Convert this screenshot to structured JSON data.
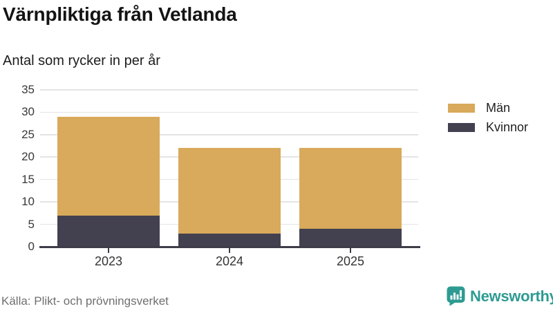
{
  "header": {
    "title": "Värnpliktiga från Vetlanda",
    "subtitle": "Antal som rycker in per år"
  },
  "footer": {
    "source": "Källa: Plikt- och prövningsverket",
    "brand": "Newsworthy"
  },
  "colors": {
    "man_gold": "#d9aa5b",
    "kvinnor_dark": "#434150",
    "axis": "#3e3c48",
    "gridline": "#e4e4e4",
    "brand_teal": "#2e9b93"
  },
  "chart_data": {
    "type": "bar",
    "stacked": true,
    "title": "Värnpliktiga från Vetlanda",
    "subtitle": "Antal som rycker in per år",
    "categories": [
      "2023",
      "2024",
      "2025"
    ],
    "series": [
      {
        "name": "Män",
        "color": "#d9aa5b",
        "values": [
          22,
          19,
          18
        ]
      },
      {
        "name": "Kvinnor",
        "color": "#434150",
        "values": [
          7,
          3,
          4
        ]
      }
    ],
    "stack_totals": [
      29,
      22,
      22
    ],
    "xlabel": "",
    "ylabel": "",
    "ylim": [
      0,
      35
    ],
    "yticks": [
      0,
      5,
      10,
      15,
      20,
      25,
      30,
      35
    ],
    "grid": "horizontal",
    "legend_position": "top-right",
    "legend_order": [
      "Män",
      "Kvinnor"
    ]
  }
}
